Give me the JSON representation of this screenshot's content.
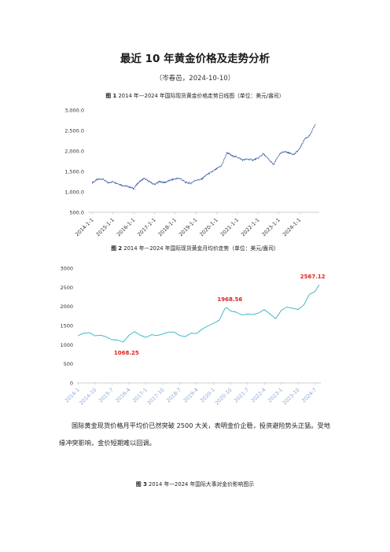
{
  "document": {
    "title": "最近 10 年黄金价格及走势分析",
    "subtitle": "（岑春邑，2024-10-10）",
    "paragraph": "国际黄金现货价格月平均价已然突破 2500 大关，表明金价企稳，投资避险势头正猛。受地缘冲突影响，金价短期难以回调。"
  },
  "figure1": {
    "label": "图 1",
    "caption": "2014 年—2024 年国际现货黄金价格走势日线图（单位：美元/盎司）"
  },
  "figure2": {
    "label": "图 2",
    "caption": "2014 年—2024 年国际现货黄金月均价走势（单位：美元/盎司）"
  },
  "figure3": {
    "label": "图 3",
    "caption": "2014 年—2024 年国际大事对金价影响图示"
  },
  "chart_data": [
    {
      "type": "line",
      "series_color": "#3b5fa8",
      "ylim": [
        500,
        3000
      ],
      "yticks": [
        500,
        1000,
        1500,
        2000,
        2500,
        3000
      ],
      "ytick_labels": [
        "500.0",
        "1,000.0",
        "1,500.0",
        "2,000.0",
        "2,500.0",
        "3,000.0"
      ],
      "xtick_labels": [
        "2014-1-1",
        "2015-1-1",
        "2016-1-1",
        "2017-1-1",
        "2018-1-1",
        "2019-1-1",
        "2020-1-1",
        "2021-1-1",
        "2022-1-1",
        "2023-1-1",
        "2024-1-1"
      ],
      "grid": false,
      "x": [
        2014.0,
        2014.25,
        2014.5,
        2014.75,
        2015.0,
        2015.25,
        2015.5,
        2015.75,
        2016.0,
        2016.25,
        2016.5,
        2016.75,
        2017.0,
        2017.25,
        2017.5,
        2017.75,
        2018.0,
        2018.25,
        2018.5,
        2018.75,
        2019.0,
        2019.25,
        2019.5,
        2019.75,
        2020.0,
        2020.25,
        2020.5,
        2020.75,
        2021.0,
        2021.25,
        2021.5,
        2021.75,
        2022.0,
        2022.25,
        2022.5,
        2022.75,
        2023.0,
        2023.25,
        2023.5,
        2023.75,
        2024.0,
        2024.25,
        2024.5,
        2024.77
      ],
      "y": [
        1225,
        1300,
        1320,
        1220,
        1250,
        1200,
        1150,
        1130,
        1080,
        1240,
        1330,
        1250,
        1180,
        1250,
        1230,
        1280,
        1320,
        1330,
        1230,
        1210,
        1290,
        1300,
        1410,
        1480,
        1560,
        1650,
        1960,
        1880,
        1850,
        1780,
        1800,
        1780,
        1820,
        1930,
        1800,
        1660,
        1900,
        1990,
        1950,
        1920,
        2050,
        2300,
        2380,
        2660
      ]
    },
    {
      "type": "line",
      "series_color": "#2bb3c0",
      "ylim": [
        0,
        3000
      ],
      "yticks": [
        0,
        500,
        1000,
        1500,
        2000,
        2500,
        3000
      ],
      "ytick_labels": [
        "0",
        "500",
        "1000",
        "1500",
        "2000",
        "2500",
        "3000"
      ],
      "xtick_labels": [
        "2014-1",
        "2014-10",
        "2015-7",
        "2016-4",
        "2017-1",
        "2017-10",
        "2018-7",
        "2019-4",
        "2020-1",
        "2020-10",
        "2021-7",
        "2022-4",
        "2023-1",
        "2023-10",
        "2024-7"
      ],
      "grid": false,
      "x": [
        2014.0,
        2014.25,
        2014.5,
        2014.75,
        2015.0,
        2015.25,
        2015.5,
        2015.75,
        2016.0,
        2016.25,
        2016.5,
        2016.75,
        2017.0,
        2017.25,
        2017.5,
        2017.75,
        2018.0,
        2018.25,
        2018.5,
        2018.75,
        2019.0,
        2019.25,
        2019.5,
        2019.75,
        2020.0,
        2020.25,
        2020.5,
        2020.58,
        2020.75,
        2021.0,
        2021.25,
        2021.5,
        2021.75,
        2022.0,
        2022.25,
        2022.5,
        2022.75,
        2023.0,
        2023.25,
        2023.5,
        2023.75,
        2024.0,
        2024.25,
        2024.5,
        2024.67
      ],
      "y": [
        1240,
        1300,
        1310,
        1230,
        1250,
        1200,
        1130,
        1120,
        1068.25,
        1245,
        1340,
        1250,
        1190,
        1260,
        1240,
        1280,
        1330,
        1330,
        1240,
        1210,
        1300,
        1290,
        1410,
        1490,
        1560,
        1640,
        1940,
        1968.56,
        1880,
        1850,
        1780,
        1800,
        1790,
        1830,
        1920,
        1800,
        1680,
        1900,
        1980,
        1950,
        1920,
        2040,
        2320,
        2390,
        2567.12
      ],
      "annotations": [
        {
          "x": 2016.0,
          "y": 1068.25,
          "text": "1068.25"
        },
        {
          "x": 2020.58,
          "y": 1968.56,
          "text": "1968.56"
        },
        {
          "x": 2024.67,
          "y": 2567.12,
          "text": "2567.12"
        }
      ],
      "annotation_color": "#e02020"
    }
  ]
}
